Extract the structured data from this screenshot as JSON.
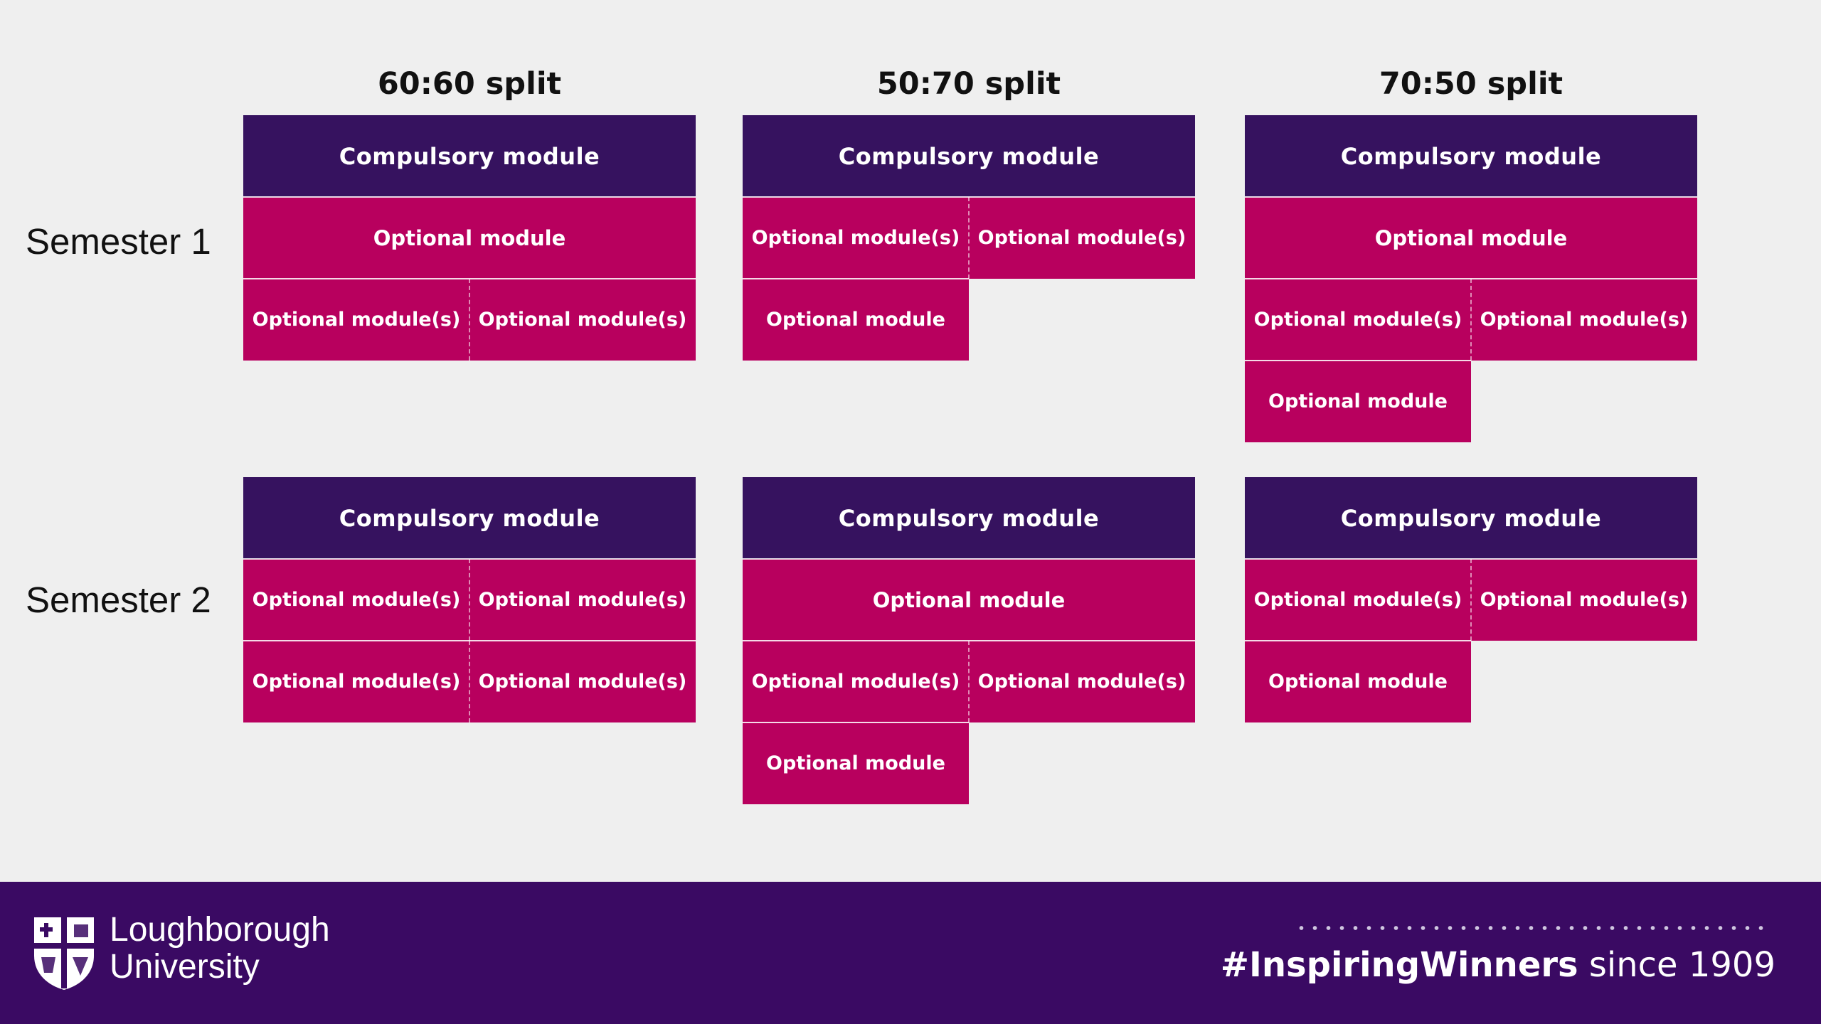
{
  "colors": {
    "background": "#efefef",
    "compulsory": "#36125f",
    "optional": "#b8005e",
    "footer": "#3a0a63",
    "text_dark": "#111111",
    "text_light": "#ffffff"
  },
  "splits": [
    {
      "title": "60:60 split",
      "semester_1": [
        {
          "type": "compulsory",
          "cells": [
            "Compulsory module"
          ]
        },
        {
          "type": "optional",
          "cells": [
            "Optional module"
          ]
        },
        {
          "type": "optional",
          "cells": [
            "Optional module(s)",
            "Optional module(s)"
          ]
        }
      ],
      "semester_2": [
        {
          "type": "compulsory",
          "cells": [
            "Compulsory module"
          ]
        },
        {
          "type": "optional",
          "cells": [
            "Optional module(s)",
            "Optional module(s)"
          ]
        },
        {
          "type": "optional",
          "cells": [
            "Optional module(s)",
            "Optional module(s)"
          ]
        }
      ]
    },
    {
      "title": "50:70 split",
      "semester_1": [
        {
          "type": "compulsory",
          "cells": [
            "Compulsory module"
          ]
        },
        {
          "type": "optional",
          "cells": [
            "Optional module(s)",
            "Optional module(s)"
          ]
        },
        {
          "type": "optional",
          "cells": [
            "Optional module",
            ""
          ]
        }
      ],
      "semester_2": [
        {
          "type": "compulsory",
          "cells": [
            "Compulsory module"
          ]
        },
        {
          "type": "optional",
          "cells": [
            "Optional module"
          ]
        },
        {
          "type": "optional",
          "cells": [
            "Optional module(s)",
            "Optional module(s)"
          ]
        },
        {
          "type": "optional",
          "cells": [
            "Optional module",
            ""
          ]
        }
      ]
    },
    {
      "title": "70:50 split",
      "semester_1": [
        {
          "type": "compulsory",
          "cells": [
            "Compulsory module"
          ]
        },
        {
          "type": "optional",
          "cells": [
            "Optional module"
          ]
        },
        {
          "type": "optional",
          "cells": [
            "Optional module(s)",
            "Optional module(s)"
          ]
        },
        {
          "type": "optional",
          "cells": [
            "Optional module",
            ""
          ]
        }
      ],
      "semester_2": [
        {
          "type": "compulsory",
          "cells": [
            "Compulsory module"
          ]
        },
        {
          "type": "optional",
          "cells": [
            "Optional module(s)",
            "Optional module(s)"
          ]
        },
        {
          "type": "optional",
          "cells": [
            "Optional module",
            ""
          ]
        }
      ]
    }
  ],
  "semesters": {
    "semester_1": "Semester 1",
    "semester_2": "Semester 2"
  },
  "footer": {
    "logo_line_1": "Loughborough",
    "logo_line_2": "University",
    "hashtag": "#InspiringWinners",
    "since": "since 1909",
    "logo_icon": "university-shield-icon"
  }
}
